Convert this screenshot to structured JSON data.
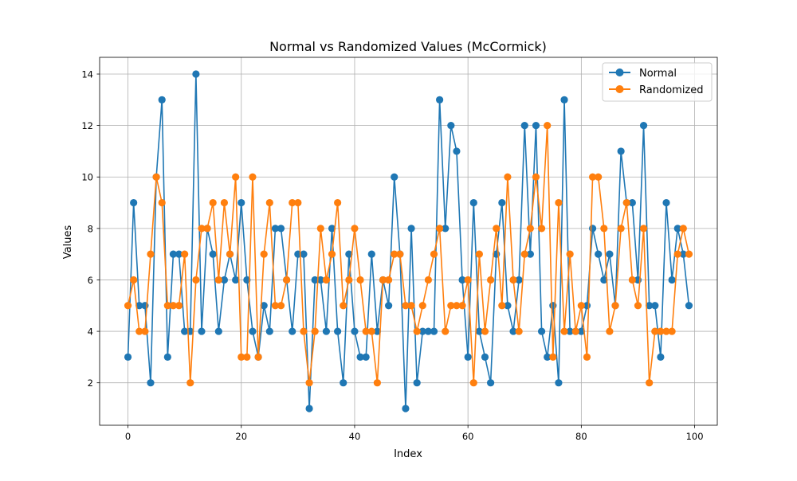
{
  "chart_data": {
    "type": "line",
    "title": "Normal vs Randomized Values (McCormick)",
    "xlabel": "Index",
    "ylabel": "Values",
    "xlim": [
      -5,
      104
    ],
    "ylim": [
      0.35,
      14.65
    ],
    "xticks": [
      0,
      20,
      40,
      60,
      80,
      100
    ],
    "yticks": [
      2,
      4,
      6,
      8,
      10,
      12,
      14
    ],
    "grid": true,
    "legend_position": "top-right",
    "series": [
      {
        "name": "Normal",
        "color": "#1f77b4",
        "marker": "circle",
        "values": [
          3,
          9,
          5,
          5,
          2,
          10,
          13,
          3,
          7,
          7,
          4,
          4,
          14,
          4,
          8,
          7,
          4,
          6,
          7,
          6,
          9,
          6,
          4,
          3,
          5,
          4,
          8,
          8,
          6,
          4,
          7,
          7,
          1,
          6,
          6,
          4,
          8,
          4,
          2,
          7,
          4,
          3,
          3,
          7,
          4,
          6,
          5,
          10,
          7,
          1,
          8,
          2,
          4,
          4,
          4,
          13,
          8,
          12,
          11,
          6,
          3,
          9,
          4,
          3,
          2,
          7,
          9,
          5,
          4,
          6,
          12,
          7,
          12,
          4,
          3,
          5,
          2,
          13,
          4,
          4,
          4,
          5,
          8,
          7,
          6,
          7,
          5,
          11,
          9,
          9,
          6,
          12,
          5,
          5,
          3,
          9,
          6,
          8,
          7,
          5
        ]
      },
      {
        "name": "Randomized",
        "color": "#ff7f0e",
        "marker": "circle",
        "values": [
          5,
          6,
          4,
          4,
          7,
          10,
          9,
          5,
          5,
          5,
          7,
          2,
          6,
          8,
          8,
          9,
          6,
          9,
          7,
          10,
          3,
          3,
          10,
          3,
          7,
          9,
          5,
          5,
          6,
          9,
          9,
          4,
          2,
          4,
          8,
          6,
          7,
          9,
          5,
          6,
          8,
          6,
          4,
          4,
          2,
          6,
          6,
          7,
          7,
          5,
          5,
          4,
          5,
          6,
          7,
          8,
          4,
          5,
          5,
          5,
          6,
          2,
          7,
          4,
          6,
          8,
          5,
          10,
          6,
          4,
          7,
          8,
          10,
          8,
          12,
          3,
          9,
          4,
          7,
          4,
          5,
          3,
          10,
          10,
          8,
          4,
          5,
          8,
          9,
          6,
          5,
          8,
          2,
          4,
          4,
          4,
          4,
          7,
          8,
          7
        ]
      }
    ]
  }
}
